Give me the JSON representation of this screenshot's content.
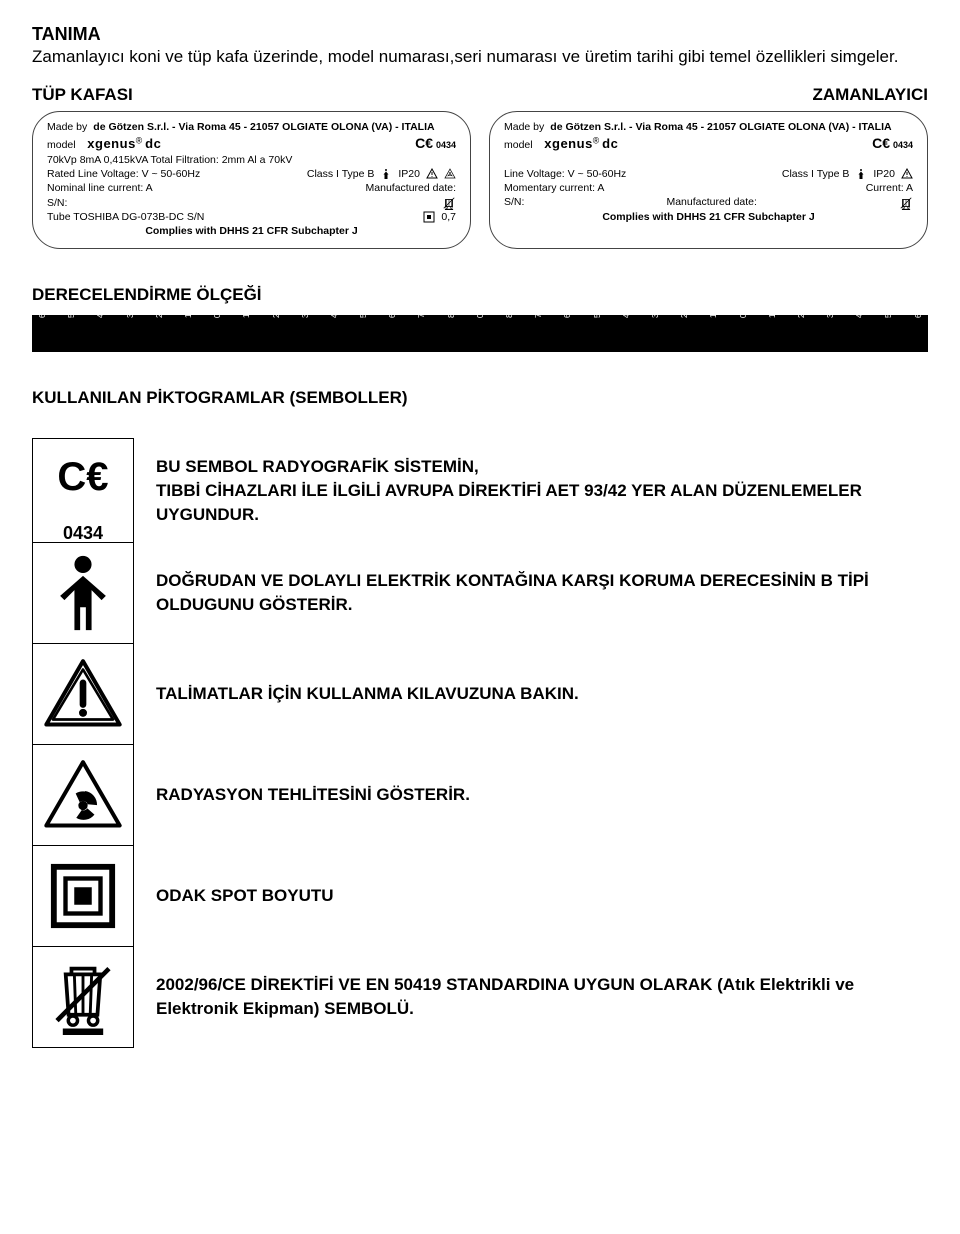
{
  "header": {
    "title": "TANIMA",
    "intro": "Zamanlayıcı koni ve tüp kafa üzerinde, model numarası,seri numarası ve üretim tarihi gibi temel özellikleri simgeler."
  },
  "plate_labels": {
    "left": "TÜP KAFASI",
    "right": "ZAMANLAYICI"
  },
  "plate_left": {
    "madeby": "Made by",
    "manufacturer": "de Götzen S.r.l.  -  Via Roma 45 - 21057 OLGIATE OLONA (VA) - ITALIA",
    "model_label": "model",
    "model_name": "xgenus",
    "model_reg": "®",
    "model_suffix": "dc",
    "ce": "C€",
    "ce_num": "0434",
    "spec1": "70kVp     8mA     0,415kVA          Total Filtration: 2mm Al a 70kV",
    "line2a": "Rated Line Voltage:     V ~ 50-60Hz",
    "line2b": "Class I Type B",
    "ip": "IP20",
    "line3a": "Nominal line current:              A",
    "line3b": "Manufactured date:",
    "sn": "S/N:",
    "tube": "Tube TOSHIBA DG-073B-DC   S/N",
    "focal": "0,7",
    "complies": "Complies with DHHS 21 CFR Subchapter J"
  },
  "plate_right": {
    "madeby": "Made by",
    "manufacturer": "de Götzen S.r.l.  -  Via Roma 45 - 21057 OLGIATE OLONA (VA) - ITALIA",
    "model_label": "model",
    "model_name": "xgenus",
    "model_reg": "®",
    "model_suffix": "dc",
    "ce": "C€",
    "ce_num": "0434",
    "line2a": "Line Voltage:              V ~ 50-60Hz",
    "line2b": "Class I Type B",
    "ip": "IP20",
    "line3a": "Momentary current:              A",
    "line3b": "Current:    A",
    "sn": "S/N:",
    "mfdate": "Manufactured date:",
    "complies": "Complies with DHHS 21 CFR Subchapter J"
  },
  "ruler": {
    "title": "DERECELENDİRME ÖLÇEĞİ",
    "ticks": [
      "60",
      "50",
      "40",
      "30",
      "20",
      "10",
      "0",
      "10",
      "20",
      "30",
      "40",
      "50",
      "60",
      "70",
      "80",
      "0",
      "80",
      "70",
      "60",
      "50",
      "40",
      "30",
      "20",
      "10",
      "0",
      "10",
      "20",
      "30",
      "40",
      "50",
      "60"
    ]
  },
  "picto_title": "KULLANILAN PİKTOGRAMLAR (SEMBOLLER)",
  "picto_rows": [
    {
      "icon": "ce-0434",
      "desc": "BU SEMBOL RADYOGRAFİK SİSTEMİN,\nTIBBİ CİHAZLARI İLE İLGİLİ AVRUPA DİREKTİFİ AET 93/42 YER ALAN DÜZENLEMELER UYGUNDUR."
    },
    {
      "icon": "person",
      "desc": "DOĞRUDAN VE DOLAYLI ELEKTRİK KONTAĞINA KARŞI KORUMA DERECESİNİN B TİPİ OLDUGUNU GÖSTERİR."
    },
    {
      "icon": "warning",
      "desc": "TALİMATLAR İÇİN KULLANMA KILAVUZUNA BAKIN."
    },
    {
      "icon": "radiation",
      "desc": "RADYASYON TEHLİTESİNİ GÖSTERİR."
    },
    {
      "icon": "focal-spot",
      "desc": "ODAK SPOT BOYUTU"
    },
    {
      "icon": "weee",
      "desc": "2002/96/CE DİREKTİFİ VE EN 50419 STANDARDINA UYGUN OLARAK  (Atık Elektrikli ve Elektronik Ekipman) SEMBOLÜ."
    }
  ]
}
